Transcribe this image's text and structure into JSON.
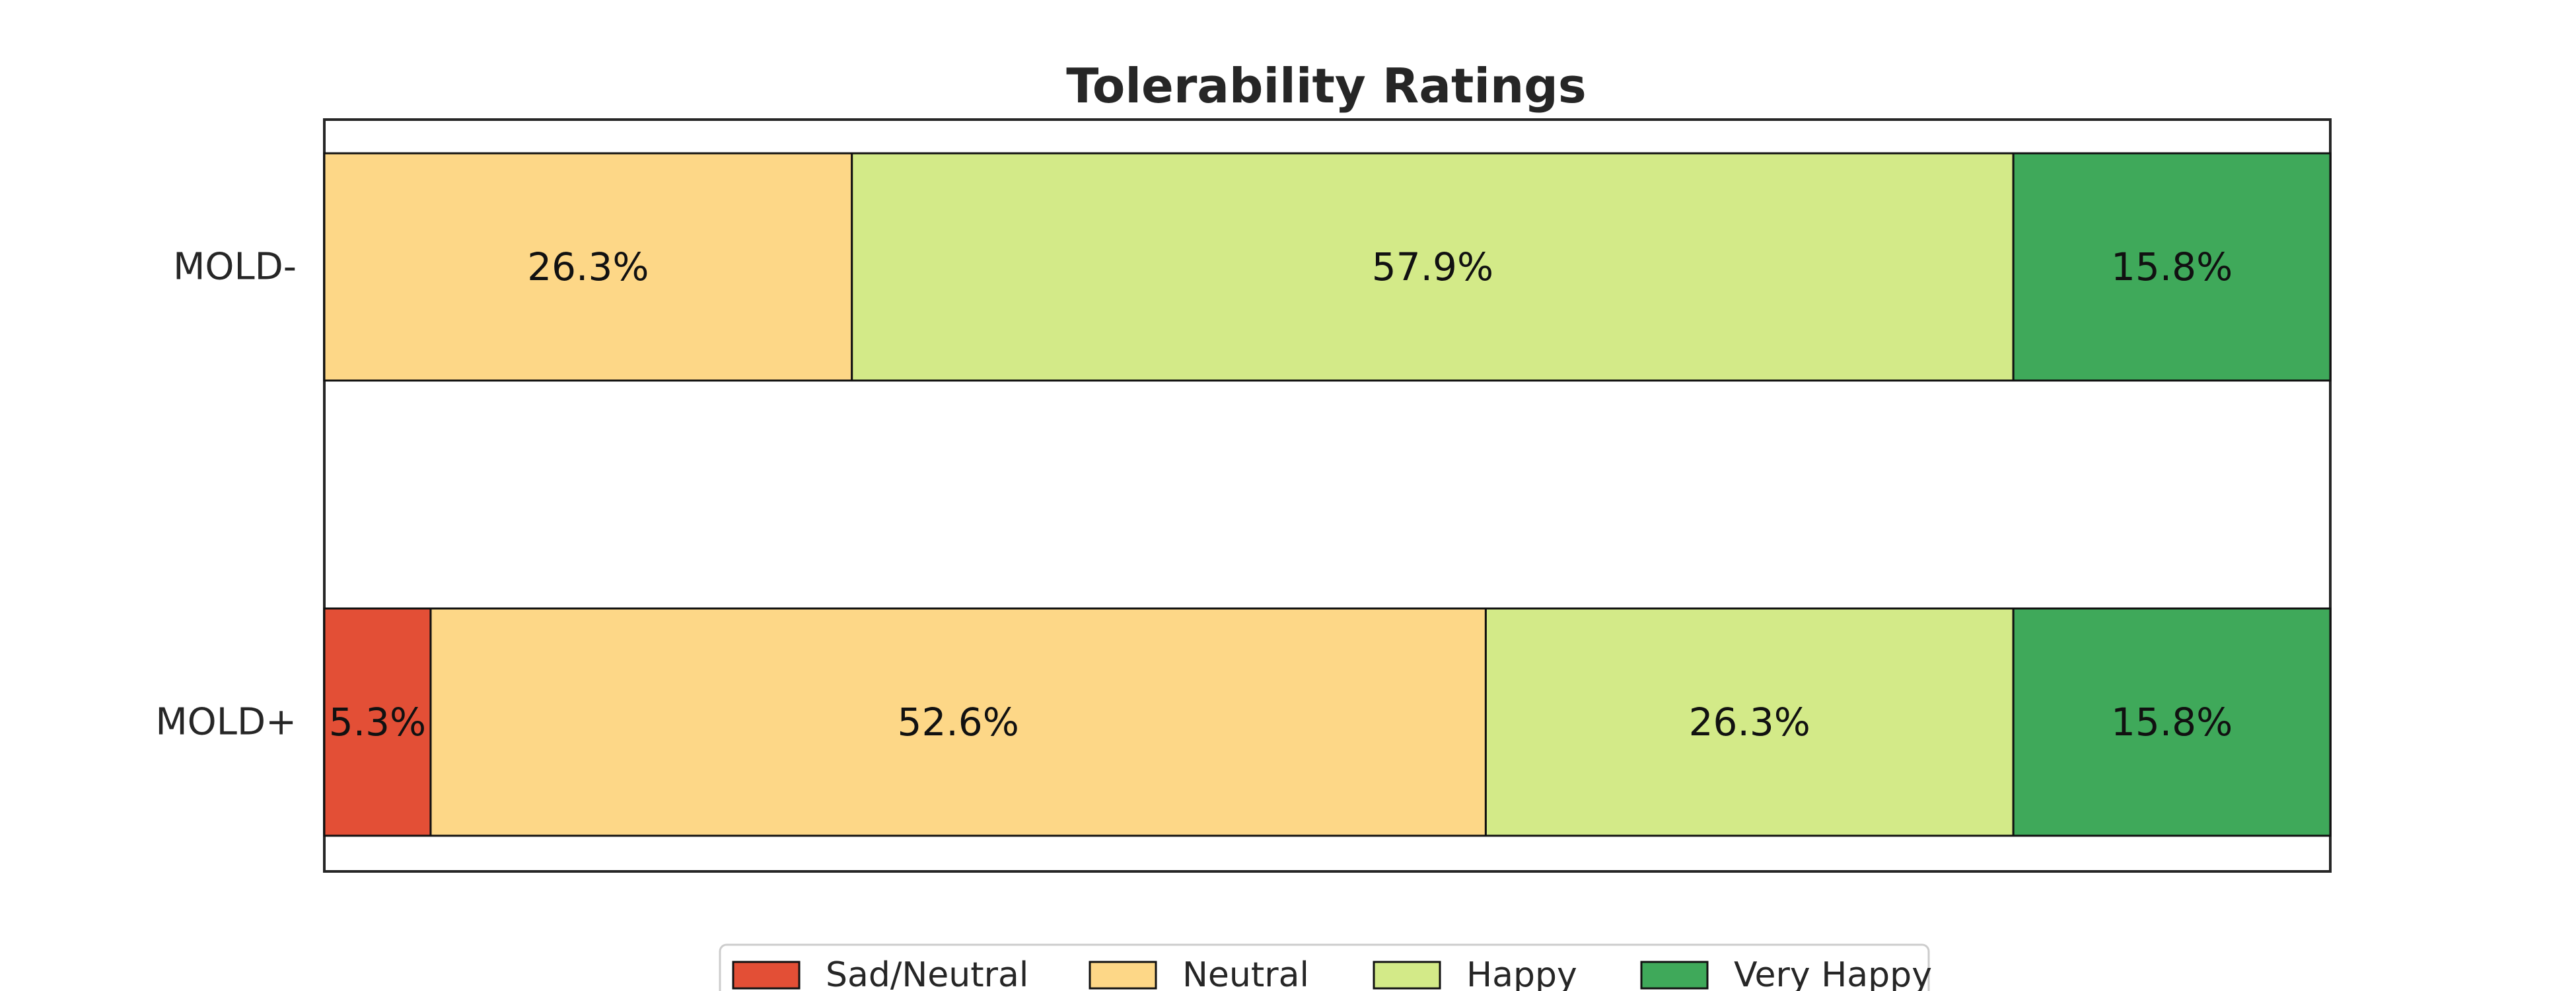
{
  "chart_data": {
    "type": "bar",
    "orientation": "horizontal",
    "stacked": true,
    "normalized_to": 100,
    "title": "Tolerability Ratings",
    "xlabel": "",
    "ylabel": "",
    "categories": [
      "MOLD-",
      "MOLD+"
    ],
    "xlim": [
      0,
      100
    ],
    "grid": false,
    "legend_position": "bottom-center",
    "series": [
      {
        "name": "Sad/Neutral",
        "color": "#e34f36",
        "values": [
          0,
          5.3
        ],
        "labels": [
          "",
          "5.3%"
        ]
      },
      {
        "name": "Neutral",
        "color": "#fdd787",
        "values": [
          26.3,
          52.6
        ],
        "labels": [
          "26.3%",
          "52.6%"
        ]
      },
      {
        "name": "Happy",
        "color": "#d3ea88",
        "values": [
          57.9,
          26.3
        ],
        "labels": [
          "57.9%",
          "26.3%"
        ]
      },
      {
        "name": "Very Happy",
        "color": "#3fa95a",
        "values": [
          15.8,
          15.8
        ],
        "labels": [
          "15.8%",
          "15.8%"
        ]
      }
    ]
  }
}
